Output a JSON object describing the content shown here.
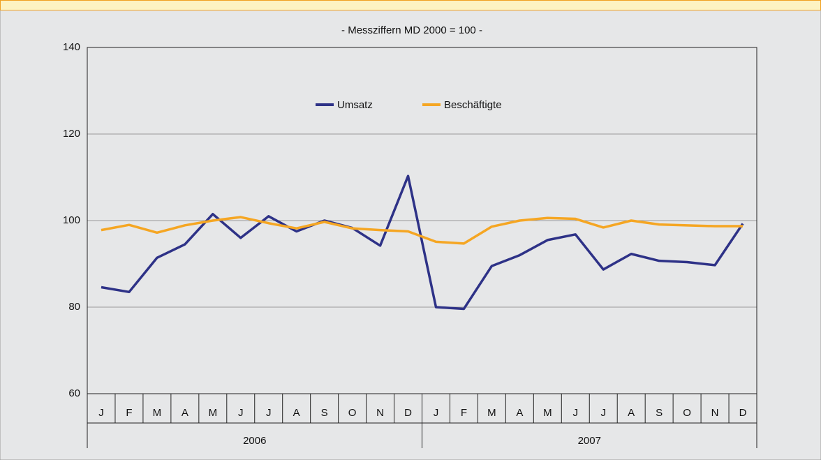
{
  "chart_data": {
    "type": "line",
    "subtitle": "- Messziffern MD 2000 = 100 -",
    "categories": [
      "J",
      "F",
      "M",
      "A",
      "M",
      "J",
      "J",
      "A",
      "S",
      "O",
      "N",
      "D",
      "J",
      "F",
      "M",
      "A",
      "M",
      "J",
      "J",
      "A",
      "S",
      "O",
      "N",
      "D"
    ],
    "years": [
      "2006",
      "2007"
    ],
    "series": [
      {
        "name": "Umsatz",
        "color": "#2e3287",
        "values": [
          84.6,
          83.5,
          91.4,
          94.5,
          101.5,
          96,
          101,
          97.5,
          100,
          98.3,
          94.2,
          110.3,
          80,
          79.6,
          89.5,
          92,
          95.5,
          96.8,
          88.7,
          92.3,
          90.7,
          90.4,
          89.7,
          99.3
        ]
      },
      {
        "name": "Beschäftigte",
        "color": "#f5a623",
        "values": [
          97.8,
          99,
          97.2,
          98.9,
          100,
          100.8,
          99.4,
          98.2,
          99.7,
          98.2,
          97.8,
          97.5,
          95.1,
          94.7,
          98.6,
          100,
          100.6,
          100.4,
          98.4,
          100,
          99.1,
          98.9,
          98.7,
          98.7
        ]
      }
    ],
    "ylim": [
      60,
      140
    ],
    "yticks": [
      60,
      80,
      100,
      120,
      140
    ],
    "grid": true
  }
}
